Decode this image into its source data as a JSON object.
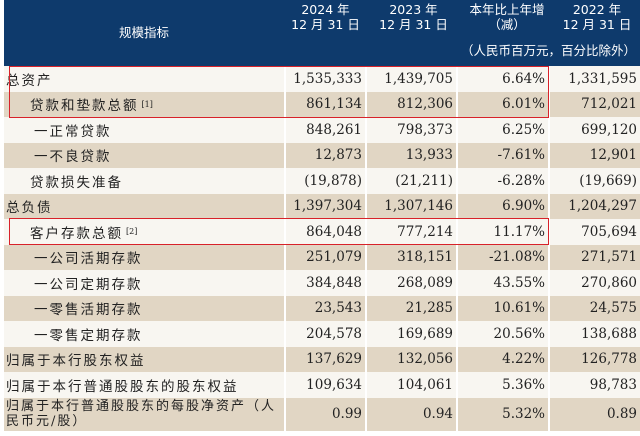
{
  "header": {
    "indicator_label": "规模指标",
    "col1": [
      "2024 年",
      "12 月 31 日"
    ],
    "col2": [
      "2023 年",
      "12 月 31 日"
    ],
    "col3": [
      "本年比上年增",
      "（减）"
    ],
    "col4": [
      "2022 年",
      "12 月 31 日"
    ],
    "unit_note": "（人民币百万元，百分比除外）"
  },
  "rows": [
    {
      "label": "总资产",
      "v2024": "1,535,333",
      "v2023": "1,439,705",
      "change": "6.64%",
      "v2022": "1,331,595"
    },
    {
      "label": "贷款和垫款总额",
      "note": "[1]",
      "v2024": "861,134",
      "v2023": "812,306",
      "change": "6.01%",
      "v2022": "712,021"
    },
    {
      "label": "一正常贷款",
      "v2024": "848,261",
      "v2023": "798,373",
      "change": "6.25%",
      "v2022": "699,120"
    },
    {
      "label": "一不良贷款",
      "v2024": "12,873",
      "v2023": "13,933",
      "change": "-7.61%",
      "v2022": "12,901"
    },
    {
      "label": "贷款损失准备",
      "v2024": "(19,878)",
      "v2023": "(21,211)",
      "change": "-6.28%",
      "v2022": "(19,669)"
    },
    {
      "label": "总负债",
      "v2024": "1,397,304",
      "v2023": "1,307,146",
      "change": "6.90%",
      "v2022": "1,204,297"
    },
    {
      "label": "客户存款总额",
      "note": "[2]",
      "v2024": "864,048",
      "v2023": "777,214",
      "change": "11.17%",
      "v2022": "705,694"
    },
    {
      "label": "一公司活期存款",
      "v2024": "251,079",
      "v2023": "318,151",
      "change": "-21.08%",
      "v2022": "271,571"
    },
    {
      "label": "一公司定期存款",
      "v2024": "384,848",
      "v2023": "268,089",
      "change": "43.55%",
      "v2022": "270,860"
    },
    {
      "label": "一零售活期存款",
      "v2024": "23,543",
      "v2023": "21,285",
      "change": "10.61%",
      "v2022": "24,575"
    },
    {
      "label": "一零售定期存款",
      "v2024": "204,578",
      "v2023": "169,689",
      "change": "20.56%",
      "v2022": "138,688"
    },
    {
      "label": "归属于本行股东权益",
      "v2024": "137,629",
      "v2023": "132,056",
      "change": "4.22%",
      "v2022": "126,778"
    },
    {
      "label": "归属于本行普通股股东的股东权益",
      "v2024": "109,634",
      "v2023": "104,061",
      "change": "5.36%",
      "v2022": "98,783"
    },
    {
      "label": "归属于本行普通股股东的每股净资产（人民币元/股）",
      "v2024": "0.99",
      "v2023": "0.94",
      "change": "5.32%",
      "v2022": "0.89"
    }
  ],
  "colors": {
    "header_bg": "#0e3a6c",
    "shaded_row": "#e1d6c4",
    "light_row": "#f8f6f1",
    "highlight_box": "#d8222a"
  }
}
